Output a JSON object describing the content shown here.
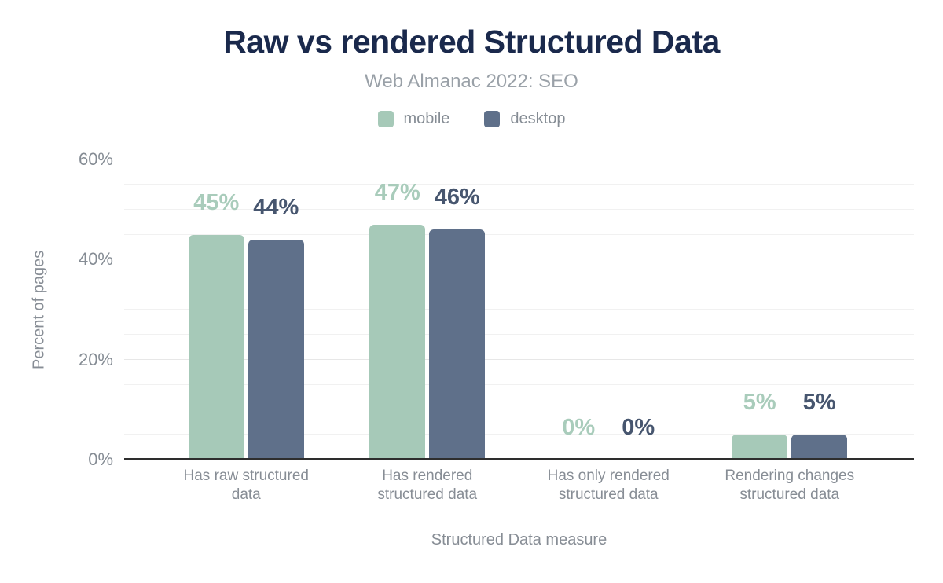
{
  "header": {
    "title": "Raw vs rendered Structured Data",
    "subtitle": "Web Almanac 2022: SEO"
  },
  "chart_data": {
    "type": "bar",
    "title": "Raw vs rendered Structured Data",
    "subtitle": "Web Almanac 2022: SEO",
    "xlabel": "Structured Data measure",
    "ylabel": "Percent of pages",
    "categories": [
      "Has raw structured data",
      "Has rendered structured data",
      "Has only rendered structured data",
      "Rendering changes structured data"
    ],
    "series": [
      {
        "name": "mobile",
        "color": "#a6c9b8",
        "label_color": "#a9ccbb",
        "values": [
          45,
          47,
          0,
          5
        ],
        "labels": [
          "45%",
          "47%",
          "0%",
          "5%"
        ]
      },
      {
        "name": "desktop",
        "color": "#5f708a",
        "label_color": "#47566f",
        "values": [
          44,
          46,
          0,
          5
        ],
        "labels": [
          "44%",
          "46%",
          "0%",
          "5%"
        ]
      }
    ],
    "ylim": [
      0,
      60
    ],
    "yticks": [
      0,
      20,
      40,
      60
    ],
    "ytick_labels": [
      "0%",
      "20%",
      "40%",
      "60%"
    ],
    "grid_minor_step": 5,
    "grid_major_step": 20,
    "grid": true,
    "legend_position": "top"
  },
  "style": {
    "title_color": "#1a294c",
    "subtitle_color": "#9aa1a8",
    "axis_text_color": "#858c94",
    "grid_color": "#f1f1f1",
    "baseline_color": "#2e2e2e"
  }
}
